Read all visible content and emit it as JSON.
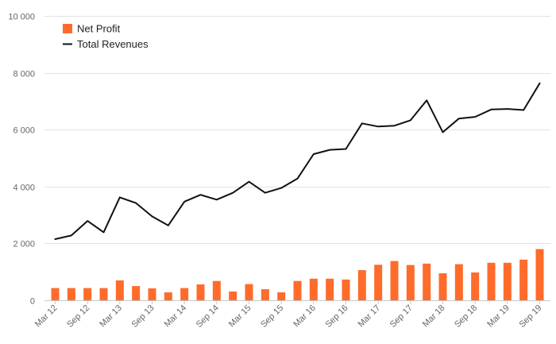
{
  "chart_data": {
    "type": "bar+line",
    "categories": [
      "Mar 12",
      "Jun 12",
      "Sep 12",
      "Dec 12",
      "Mar 13",
      "Jun 13",
      "Sep 13",
      "Dec 13",
      "Mar 14",
      "Jun 14",
      "Sep 14",
      "Dec 14",
      "Mar 15",
      "Jun 15",
      "Sep 15",
      "Dec 15",
      "Mar 16",
      "Jun 16",
      "Sep 16",
      "Dec 16",
      "Mar 17",
      "Jun 17",
      "Sep 17",
      "Dec 17",
      "Mar 18",
      "Jun 18",
      "Sep 18",
      "Dec 18",
      "Mar 19",
      "Jun 19",
      "Sep 19"
    ],
    "x_tick_labels": [
      "Mar 12",
      "Sep 12",
      "Mar 13",
      "Sep 13",
      "Mar 14",
      "Sep 14",
      "Mar 15",
      "Sep 15",
      "Mar 16",
      "Sep 16",
      "Mar 17",
      "Sep 17",
      "Mar 18",
      "Sep 18",
      "Mar 19",
      "Sep 19"
    ],
    "series": [
      {
        "name": "Net Profit",
        "type": "bar",
        "color": "#ff6b2b",
        "values": [
          430,
          430,
          430,
          430,
          700,
          500,
          420,
          280,
          430,
          560,
          680,
          310,
          570,
          390,
          280,
          680,
          760,
          760,
          730,
          1060,
          1250,
          1380,
          1240,
          1290,
          950,
          1270,
          980,
          1320,
          1320,
          1430,
          1800
        ]
      },
      {
        "name": "Total Revenues",
        "type": "line",
        "color": "#111111",
        "values": [
          2150,
          2280,
          2790,
          2390,
          3620,
          3420,
          2950,
          2630,
          3470,
          3710,
          3540,
          3780,
          4170,
          3780,
          3950,
          4280,
          5140,
          5290,
          5320,
          6220,
          6110,
          6140,
          6330,
          7030,
          5910,
          6390,
          6450,
          6710,
          6730,
          6690,
          7630
        ]
      }
    ],
    "ylim": [
      0,
      10000
    ],
    "y_ticks": [
      0,
      2000,
      4000,
      6000,
      8000,
      10000
    ],
    "y_tick_labels": [
      "0",
      "2 000",
      "4 000",
      "6 000",
      "8 000",
      "10 000"
    ],
    "legend_position": "top-left",
    "grid": true
  }
}
